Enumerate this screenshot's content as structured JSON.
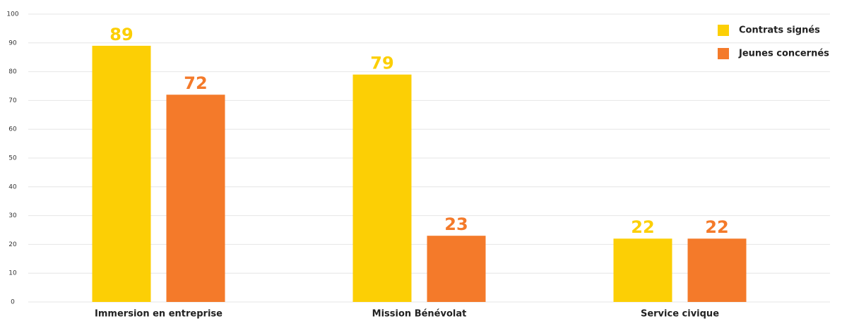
{
  "chart_data": {
    "type": "bar",
    "categories": [
      "Immersion en entreprise",
      "Mission Bénévolat",
      "Service civique"
    ],
    "series": [
      {
        "name": "Contrats signés",
        "color": "#fccf05",
        "values": [
          89,
          79,
          22
        ]
      },
      {
        "name": "Jeunes concernés",
        "color": "#f47a2a",
        "values": [
          72,
          23,
          22
        ]
      }
    ],
    "ylim": [
      0,
      100
    ],
    "yticks": [
      0,
      10,
      20,
      30,
      40,
      50,
      60,
      70,
      80,
      90,
      100
    ],
    "grid": true,
    "legend": "top-right"
  }
}
